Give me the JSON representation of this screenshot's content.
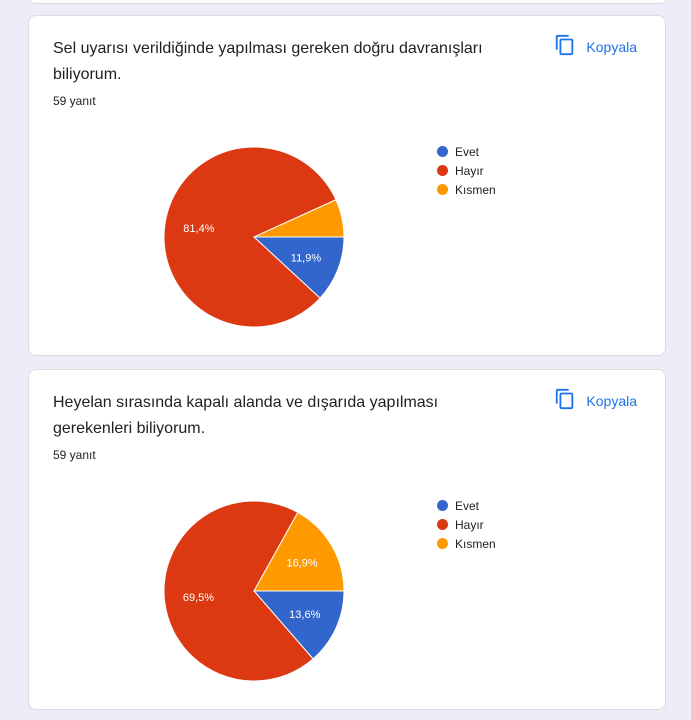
{
  "cards": [
    {
      "title": "Sel uyarısı verildiğinde yapılması gereken doğru davranışları biliyorum.",
      "responses": "59 yanıt",
      "copy_label": "Kopyala"
    },
    {
      "title": "Heyelan sırasında kapalı alanda ve dışarıda yapılması gerekenleri biliyorum.",
      "responses": "59 yanıt",
      "copy_label": "Kopyala"
    }
  ],
  "chart_data": [
    {
      "type": "pie",
      "categories": [
        "Evet",
        "Hayır",
        "Kısmen"
      ],
      "values": [
        11.9,
        81.4,
        6.8
      ],
      "labels": [
        "11,9%",
        "81,4%",
        ""
      ],
      "colors": [
        "#3366cc",
        "#dc3912",
        "#ff9900"
      ],
      "legend": "right"
    },
    {
      "type": "pie",
      "categories": [
        "Evet",
        "Hayır",
        "Kısmen"
      ],
      "values": [
        13.6,
        69.5,
        16.9
      ],
      "labels": [
        "13,6%",
        "69,5%",
        "16,9%"
      ],
      "colors": [
        "#3366cc",
        "#dc3912",
        "#ff9900"
      ],
      "legend": "right"
    }
  ]
}
